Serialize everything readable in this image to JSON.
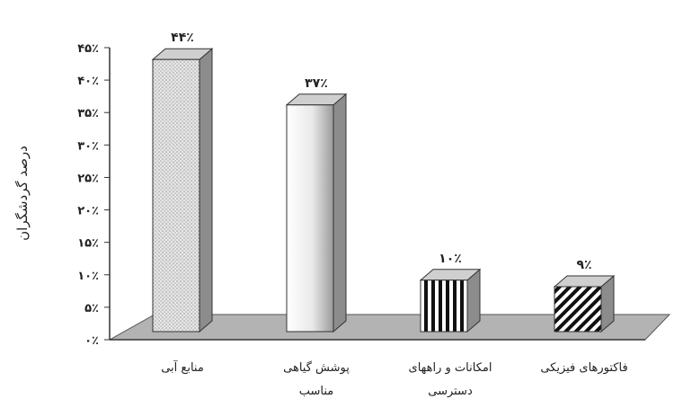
{
  "chart_data": {
    "type": "bar",
    "ylabel": "درصد گردشگران",
    "ylim": [
      0,
      45
    ],
    "yticks": [
      0,
      5,
      10,
      15,
      20,
      25,
      30,
      35,
      40,
      45
    ],
    "ytick_labels": [
      "۰٪",
      "۵٪",
      "۱۰٪",
      "۱۵٪",
      "۲۰٪",
      "۲۵٪",
      "۳۰٪",
      "۳۵٪",
      "۴۰٪",
      "۴۵٪"
    ],
    "categories": [
      [
        "منابع آبی"
      ],
      [
        "پوشش گیاهی",
        "مناسب"
      ],
      [
        "امکانات و راههای",
        "دسترسی"
      ],
      [
        "فاکتورهای فیزیکی"
      ]
    ],
    "values": [
      44,
      37,
      10,
      9
    ],
    "data_labels": [
      "۴۴٪",
      "۳۷٪",
      "۱۰٪",
      "۹٪"
    ],
    "fills": [
      "dots",
      "gradient",
      "vertical-stripes",
      "diagonal-stripes"
    ],
    "colors": {
      "floor": "#b3b3b3",
      "bar_side": "#8c8c8c",
      "bar_top": "#cfcfcf",
      "text": "#222222",
      "axis": "#333333"
    },
    "grid": false,
    "legend": "none"
  }
}
